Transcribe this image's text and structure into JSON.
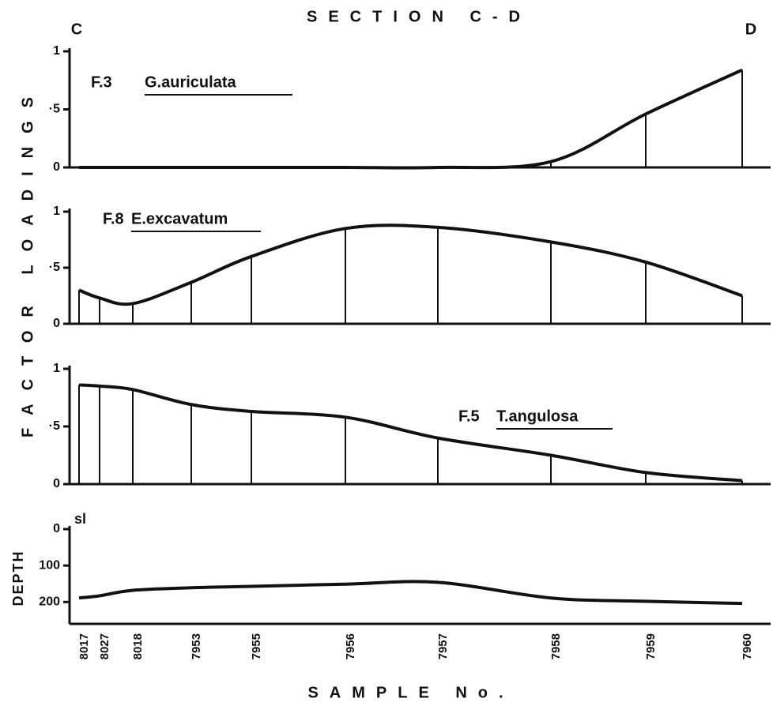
{
  "title": "SECTION C-D",
  "left_label": "C",
  "right_label": "D",
  "y_label": "FACTOR LOADINGS",
  "x_axis": {
    "label": "SAMPLE No.",
    "categories": [
      "8017",
      "8027",
      "8018",
      "7953",
      "7955",
      "7956",
      "7957",
      "7958",
      "7959",
      "7960"
    ]
  },
  "chart_data": [
    {
      "type": "line",
      "label": "F.3",
      "species": "G.auriculata",
      "color": "#111111",
      "values": [
        0,
        0,
        0,
        0,
        0,
        0,
        0,
        0.05,
        0.46,
        0.84
      ],
      "ylim": [
        0,
        1
      ],
      "yticks": [
        0,
        {
          "value": 0.5,
          "label": "·5"
        },
        1
      ]
    },
    {
      "type": "line",
      "label": "F.8",
      "species": "E.excavatum",
      "color": "#111111",
      "values": [
        0.3,
        0.23,
        0.18,
        0.37,
        0.6,
        0.85,
        0.86,
        0.73,
        0.55,
        0.25
      ],
      "ylim": [
        0,
        1
      ],
      "yticks": [
        0,
        {
          "value": 0.5,
          "label": "·5"
        },
        1
      ]
    },
    {
      "type": "line",
      "label": "F.5",
      "species": "T.angulosa",
      "color": "#111111",
      "values": [
        0.86,
        0.85,
        0.82,
        0.69,
        0.63,
        0.58,
        0.4,
        0.25,
        0.1,
        0.03
      ],
      "ylim": [
        0,
        1
      ],
      "yticks": [
        0,
        {
          "value": 0.5,
          "label": "·5"
        },
        1
      ]
    },
    {
      "type": "depth",
      "y_label": "DEPTH",
      "annotation": "sl",
      "color": "#111111",
      "inverted": true,
      "values": [
        189,
        183,
        168,
        161,
        157,
        151,
        146,
        189,
        198,
        204
      ],
      "ylim": [
        0,
        260
      ],
      "yticks": [
        0,
        100,
        200
      ]
    }
  ]
}
